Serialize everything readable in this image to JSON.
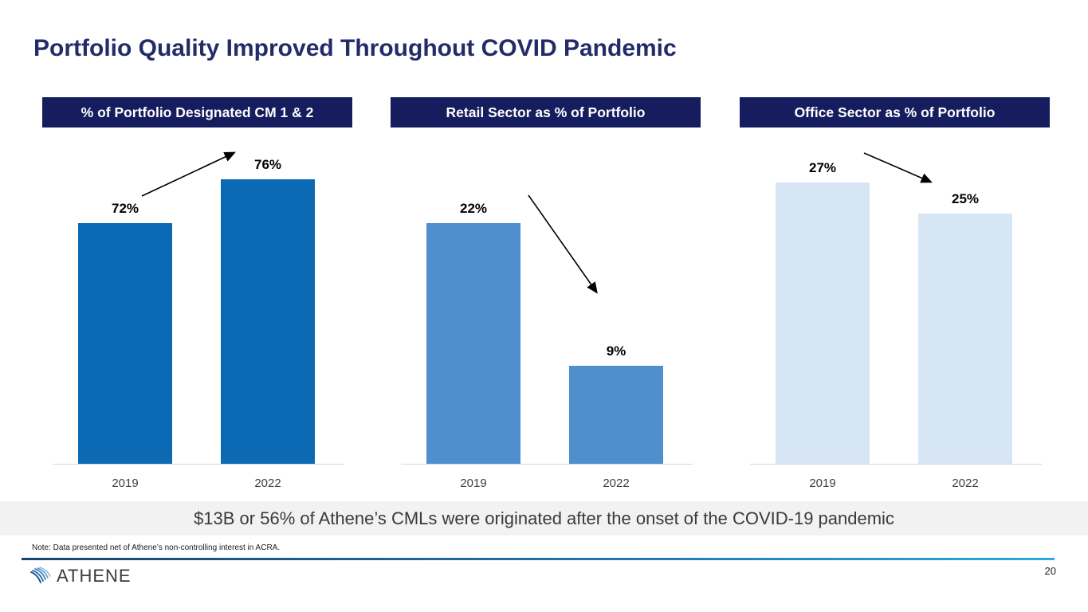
{
  "slide": {
    "title": "Portfolio Quality Improved Throughout COVID Pandemic",
    "banner_text": "$13B or 56% of Athene’s CMLs were originated after the onset of the COVID-19 pandemic",
    "footnote": "Note: Data presented net of Athene’s non-controlling interest in ACRA.",
    "page_number": "20",
    "logo_text": "ATHENE"
  },
  "colors": {
    "title_text": "#222c68",
    "chart_header_bg": "#161d5e",
    "chart_header_text": "#ffffff",
    "banner_bg": "#f2f2f2",
    "banner_text": "#3a3a3a",
    "axis_line": "#d9d9d9",
    "rule_gradient_left": "#16456e",
    "rule_gradient_right": "#29abe2"
  },
  "chart_data": [
    {
      "type": "bar",
      "title": "% of Portfolio Designated CM 1 & 2",
      "categories": [
        "2019",
        "2022"
      ],
      "values": [
        72,
        76
      ],
      "value_labels": [
        "72%",
        "76%"
      ],
      "ylim": [
        50,
        80
      ],
      "bar_color": "#0b6ab3",
      "trend": "up",
      "grid": "off",
      "legend": "none"
    },
    {
      "type": "bar",
      "title": "Retail Sector as % of Portfolio",
      "categories": [
        "2019",
        "2022"
      ],
      "values": [
        22,
        9
      ],
      "value_labels": [
        "22%",
        "9%"
      ],
      "ylim": [
        0,
        30
      ],
      "bar_color": "#4f8fce",
      "trend": "down",
      "grid": "off",
      "legend": "none"
    },
    {
      "type": "bar",
      "title": "Office Sector as % of Portfolio",
      "categories": [
        "2019",
        "2022"
      ],
      "values": [
        27,
        25
      ],
      "value_labels": [
        "27%",
        "25%"
      ],
      "ylim": [
        9,
        30
      ],
      "bar_color": "#d7e6f4",
      "trend": "down",
      "grid": "off",
      "legend": "none"
    }
  ]
}
